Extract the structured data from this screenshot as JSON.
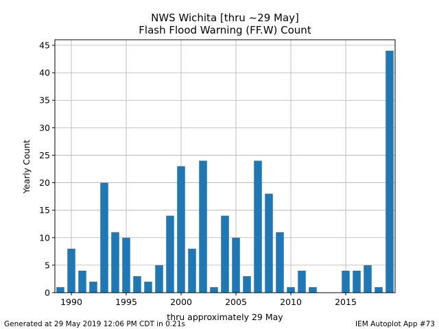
{
  "chart_data": {
    "type": "bar",
    "title_line1": "NWS Wichita [thru ~29 May]",
    "title_line2": "Flash Flood Warning (FF.W) Count",
    "xlabel": "thru approximately 29 May",
    "ylabel": "Yearly Count",
    "x": [
      1989,
      1990,
      1991,
      1992,
      1993,
      1994,
      1995,
      1996,
      1997,
      1998,
      1999,
      2000,
      2001,
      2002,
      2003,
      2004,
      2005,
      2006,
      2007,
      2008,
      2009,
      2010,
      2011,
      2012,
      2013,
      2014,
      2015,
      2016,
      2017,
      2018,
      2019
    ],
    "values": [
      1,
      8,
      4,
      2,
      20,
      11,
      10,
      3,
      2,
      5,
      14,
      23,
      8,
      24,
      1,
      14,
      10,
      3,
      24,
      18,
      11,
      1,
      4,
      1,
      0,
      0,
      4,
      4,
      5,
      1,
      44
    ],
    "xlim": [
      1988.5,
      2019.5
    ],
    "ylim": [
      0,
      46
    ],
    "xticks": [
      1990,
      1995,
      2000,
      2005,
      2010,
      2015
    ],
    "yticks": [
      0,
      5,
      10,
      15,
      20,
      25,
      30,
      35,
      40,
      45
    ],
    "grid": true,
    "bar_color": "#1f77b4"
  },
  "footer": {
    "generated": "Generated at 29 May 2019 12:06 PM CDT in 0.21s",
    "app": "IEM Autoplot App #73"
  }
}
